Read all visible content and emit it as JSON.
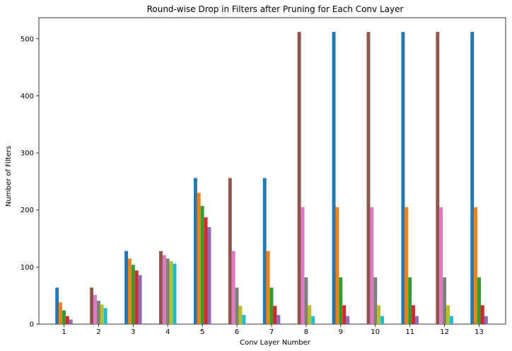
{
  "chart_data": {
    "type": "bar",
    "title": "Round-wise Drop in Filters after Pruning for Each Conv Layer",
    "xlabel": "Conv Layer Number",
    "ylabel": "Number of Filters",
    "categories": [
      "1",
      "2",
      "3",
      "4",
      "5",
      "6",
      "7",
      "8",
      "9",
      "10",
      "11",
      "12",
      "13"
    ],
    "ylim": [
      0,
      537
    ],
    "yticks": [
      0,
      100,
      200,
      300,
      400,
      500
    ],
    "grid": false,
    "legend": "none",
    "layers": [
      {
        "layer": "1",
        "bars": [
          {
            "round": 0,
            "value": 64
          },
          {
            "round": 1,
            "value": 38
          },
          {
            "round": 2,
            "value": 24
          },
          {
            "round": 3,
            "value": 14
          },
          {
            "round": 4,
            "value": 8
          }
        ]
      },
      {
        "layer": "2",
        "bars": [
          {
            "round": 5,
            "value": 64
          },
          {
            "round": 6,
            "value": 51
          },
          {
            "round": 7,
            "value": 41
          },
          {
            "round": 8,
            "value": 34
          },
          {
            "round": 9,
            "value": 28
          }
        ]
      },
      {
        "layer": "3",
        "bars": [
          {
            "round": 0,
            "value": 128
          },
          {
            "round": 1,
            "value": 115
          },
          {
            "round": 2,
            "value": 104
          },
          {
            "round": 3,
            "value": 94
          },
          {
            "round": 4,
            "value": 86
          }
        ]
      },
      {
        "layer": "4",
        "bars": [
          {
            "round": 5,
            "value": 128
          },
          {
            "round": 6,
            "value": 121
          },
          {
            "round": 7,
            "value": 115
          },
          {
            "round": 8,
            "value": 110
          },
          {
            "round": 9,
            "value": 106
          }
        ]
      },
      {
        "layer": "5",
        "bars": [
          {
            "round": 0,
            "value": 256
          },
          {
            "round": 1,
            "value": 230
          },
          {
            "round": 2,
            "value": 207
          },
          {
            "round": 3,
            "value": 187
          },
          {
            "round": 4,
            "value": 170
          }
        ]
      },
      {
        "layer": "6",
        "bars": [
          {
            "round": 5,
            "value": 256
          },
          {
            "round": 6,
            "value": 128
          },
          {
            "round": 7,
            "value": 64
          },
          {
            "round": 8,
            "value": 32
          },
          {
            "round": 9,
            "value": 16
          }
        ]
      },
      {
        "layer": "7",
        "bars": [
          {
            "round": 0,
            "value": 256
          },
          {
            "round": 1,
            "value": 128
          },
          {
            "round": 2,
            "value": 64
          },
          {
            "round": 3,
            "value": 32
          },
          {
            "round": 4,
            "value": 16
          }
        ]
      },
      {
        "layer": "8",
        "bars": [
          {
            "round": 5,
            "value": 512
          },
          {
            "round": 6,
            "value": 205
          },
          {
            "round": 7,
            "value": 82
          },
          {
            "round": 8,
            "value": 33
          },
          {
            "round": 9,
            "value": 14
          }
        ]
      },
      {
        "layer": "9",
        "bars": [
          {
            "round": 0,
            "value": 512
          },
          {
            "round": 1,
            "value": 205
          },
          {
            "round": 2,
            "value": 82
          },
          {
            "round": 3,
            "value": 33
          },
          {
            "round": 4,
            "value": 14
          }
        ]
      },
      {
        "layer": "10",
        "bars": [
          {
            "round": 5,
            "value": 512
          },
          {
            "round": 6,
            "value": 205
          },
          {
            "round": 7,
            "value": 82
          },
          {
            "round": 8,
            "value": 33
          },
          {
            "round": 9,
            "value": 14
          }
        ]
      },
      {
        "layer": "11",
        "bars": [
          {
            "round": 0,
            "value": 512
          },
          {
            "round": 1,
            "value": 205
          },
          {
            "round": 2,
            "value": 82
          },
          {
            "round": 3,
            "value": 33
          },
          {
            "round": 4,
            "value": 14
          }
        ]
      },
      {
        "layer": "12",
        "bars": [
          {
            "round": 5,
            "value": 512
          },
          {
            "round": 6,
            "value": 205
          },
          {
            "round": 7,
            "value": 82
          },
          {
            "round": 8,
            "value": 33
          },
          {
            "round": 9,
            "value": 14
          }
        ]
      },
      {
        "layer": "13",
        "bars": [
          {
            "round": 0,
            "value": 512
          },
          {
            "round": 1,
            "value": 205
          },
          {
            "round": 2,
            "value": 82
          },
          {
            "round": 3,
            "value": 33
          },
          {
            "round": 4,
            "value": 14
          }
        ]
      }
    ],
    "colors": [
      "#1f77b4",
      "#ff7f0e",
      "#2ca02c",
      "#d62728",
      "#9467bd",
      "#8c564b",
      "#e377c2",
      "#7f7f7f",
      "#bcbd22",
      "#17becf"
    ]
  }
}
